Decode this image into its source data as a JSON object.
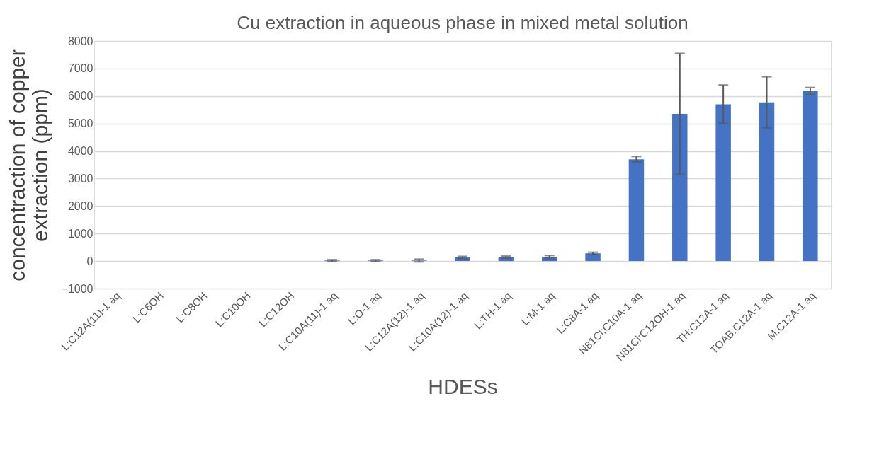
{
  "chart_data": {
    "type": "bar",
    "title": "Cu extraction in aqueous phase in mixed metal solution",
    "xlabel": "HDESs",
    "ylabel": "concentraction of copper extraction (ppm)",
    "categories": [
      "L:C12A(11)-1 aq",
      "L:C6OH",
      "L:C8OH",
      "L:C10OH",
      "L:C12OH",
      "L:C10A(11)-1 aq",
      "L:O-1 aq",
      "L:C12A(12)-1 aq",
      "L:C10A(12)-1 aq",
      "L:TH-1 aq",
      "L:M-1 aq",
      "L:C8A-1 aq",
      "N81Cl:C10A-1 aq",
      "N81Cl:C12OH-1 aq",
      "TH:C12A-1 aq",
      "TOAB:C12A-1 aq",
      "M:C12A-1 aq"
    ],
    "values": [
      0,
      0,
      0,
      0,
      0,
      20,
      20,
      20,
      130,
      140,
      150,
      280,
      3700,
      5350,
      5700,
      5770,
      6180
    ],
    "errors": [
      null,
      null,
      null,
      null,
      null,
      30,
      30,
      50,
      40,
      40,
      50,
      40,
      100,
      2200,
      700,
      930,
      130
    ],
    "color": "#4472c4",
    "ylim": [
      -1000,
      8000
    ],
    "yticks": [
      -1000,
      0,
      1000,
      2000,
      3000,
      4000,
      5000,
      6000,
      7000,
      8000
    ],
    "grid": "y"
  }
}
